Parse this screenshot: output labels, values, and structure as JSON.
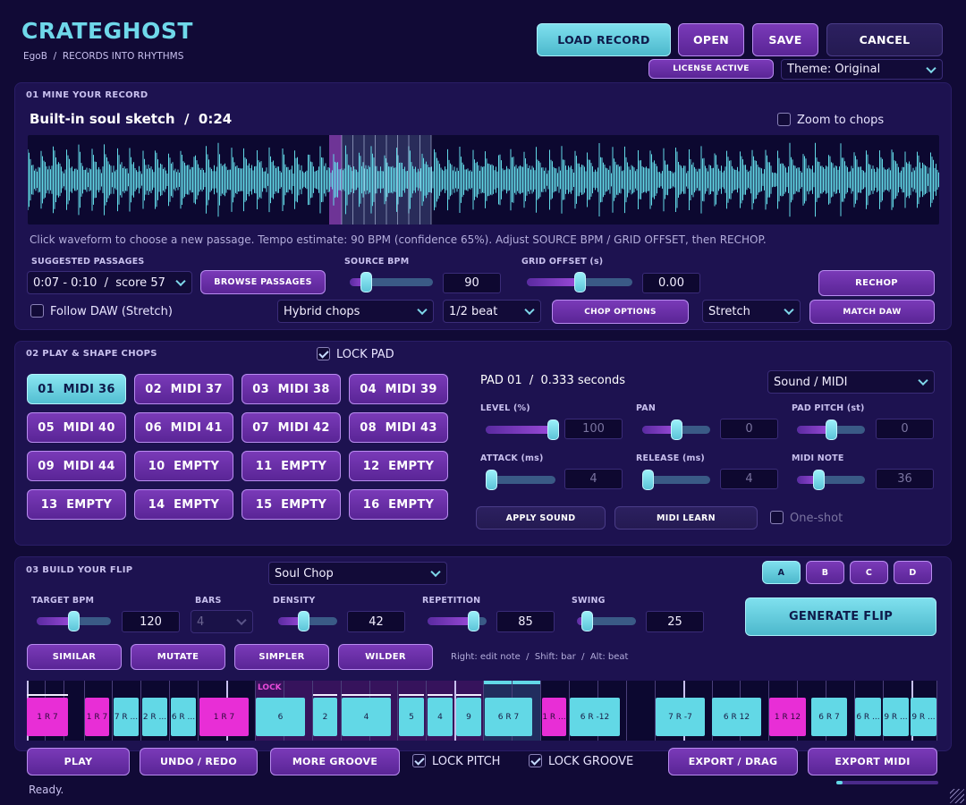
{
  "app": {
    "title": "CRATEGHOST",
    "breadcrumb_user": "EgoB",
    "breadcrumb_sep": "/",
    "breadcrumb_tagline": "RECORDS INTO RHYTHMS"
  },
  "top": {
    "load_record": "LOAD RECORD",
    "open": "OPEN",
    "save": "SAVE",
    "cancel": "CANCEL",
    "license": "LICENSE ACTIVE",
    "theme": "Theme: Original"
  },
  "mine": {
    "section": "01  MINE YOUR RECORD",
    "title": "Built-in soul sketch  /  0:24",
    "zoom_label": "Zoom to chops",
    "hint": "Click waveform to choose a new passage. Tempo estimate: 90 BPM (confidence 65%). Adjust SOURCE BPM / GRID OFFSET, then RECHOP.",
    "suggested_label": "SUGGESTED PASSAGES",
    "suggested_value": "0:07 - 0:10  /  score 57",
    "browse": "BROWSE PASSAGES",
    "source_bpm_label": "SOURCE BPM",
    "source_bpm_value": "90",
    "source_bpm_level": 0.15,
    "grid_offset_label": "GRID OFFSET (s)",
    "grid_offset_value": "0.00",
    "grid_offset_level": 0.5,
    "rechop": "RECHOP",
    "follow_daw": "Follow DAW (Stretch)",
    "chop_mode": "Hybrid chops",
    "chop_div": "1/2 beat",
    "chop_options": "CHOP OPTIONS",
    "stretch": "Stretch",
    "match_daw": "MATCH DAW"
  },
  "play": {
    "section": "02  PLAY & SHAPE CHOPS",
    "lock_pad": "LOCK PAD",
    "pads": [
      "01  MIDI 36",
      "02  MIDI 37",
      "03  MIDI 38",
      "04  MIDI 39",
      "05  MIDI 40",
      "06  MIDI 41",
      "07  MIDI 42",
      "08  MIDI 43",
      "09  MIDI 44",
      "10  EMPTY",
      "11  EMPTY",
      "12  EMPTY",
      "13  EMPTY",
      "14  EMPTY",
      "15  EMPTY",
      "16  EMPTY"
    ],
    "pad_info": "PAD 01  /  0.333 seconds",
    "output_mode": "Sound / MIDI",
    "level_label": "LEVEL (%)",
    "level_value": "100",
    "level_level": 1.0,
    "pan_label": "PAN",
    "pan_value": "0",
    "pan_level": 0.5,
    "pitch_label": "PAD PITCH (st)",
    "pitch_value": "0",
    "pitch_level": 0.5,
    "attack_label": "ATTACK (ms)",
    "attack_value": "4",
    "attack_level": 0.0,
    "release_label": "RELEASE (ms)",
    "release_value": "4",
    "release_level": 0.0,
    "midi_note_label": "MIDI NOTE",
    "midi_note_value": "36",
    "midi_note_level": 0.28,
    "apply_sound": "APPLY SOUND",
    "midi_learn": "MIDI LEARN",
    "one_shot": "One-shot"
  },
  "build": {
    "section": "03  BUILD YOUR FLIP",
    "style": "Soul Chop",
    "variants": [
      "A",
      "B",
      "C",
      "D"
    ],
    "target_bpm_label": "TARGET BPM",
    "target_bpm_value": "120",
    "target_bpm_level": 0.5,
    "bars_label": "BARS",
    "bars_value": "4",
    "density_label": "DENSITY",
    "density_value": "42",
    "density_level": 0.42,
    "repetition_label": "REPETITION",
    "repetition_value": "85",
    "repetition_level": 0.85,
    "swing_label": "SWING",
    "swing_value": "25",
    "swing_level": 0.1,
    "generate": "GENERATE FLIP",
    "similar": "SIMILAR",
    "mutate": "MUTATE",
    "simpler": "SIMPLER",
    "wilder": "WILDER",
    "hint": "Right: edit note  /  Shift: bar  /  Alt: beat",
    "lock_tag": "LOCK",
    "notes": [
      {
        "label": "1 R 7",
        "kind": "pink"
      },
      {
        "label": "1 R 7",
        "kind": "pink"
      },
      {
        "label": "7 R ...",
        "kind": "cyan"
      },
      {
        "label": "2 R ...",
        "kind": "cyan"
      },
      {
        "label": "6 R ...",
        "kind": "cyan"
      },
      {
        "label": "1 R 7",
        "kind": "pink"
      },
      {
        "label": "6",
        "kind": "cyan"
      },
      {
        "label": "2",
        "kind": "cyan"
      },
      {
        "label": "4",
        "kind": "cyan"
      },
      {
        "label": "5",
        "kind": "cyan"
      },
      {
        "label": "4",
        "kind": "cyan"
      },
      {
        "label": "9",
        "kind": "cyan"
      },
      {
        "label": "6 R 7",
        "kind": "cyan"
      },
      {
        "label": "1 R ...",
        "kind": "pink"
      },
      {
        "label": "6 R -12",
        "kind": "cyan"
      },
      {
        "label": "7 R -7",
        "kind": "cyan"
      },
      {
        "label": "6 R 12",
        "kind": "cyan"
      },
      {
        "label": "1 R 12",
        "kind": "pink"
      },
      {
        "label": "6 R 7",
        "kind": "cyan"
      },
      {
        "label": "6 R ...",
        "kind": "cyan"
      },
      {
        "label": "9 R ...",
        "kind": "cyan"
      },
      {
        "label": "9 R ...",
        "kind": "cyan"
      }
    ]
  },
  "footer": {
    "play": "PLAY",
    "undo_redo": "UNDO / REDO",
    "more_groove": "MORE GROOVE",
    "lock_pitch": "LOCK PITCH",
    "lock_groove": "LOCK GROOVE",
    "export_drag": "EXPORT / DRAG",
    "export_midi": "EXPORT MIDI",
    "status": "Ready.",
    "progress": 0.06
  },
  "colors": {
    "accent_cyan": "#62d8e6",
    "accent_purple": "#7a3ab8",
    "accent_pink": "#e82ed6",
    "panel": "#1d1250",
    "background": "#110a36"
  }
}
